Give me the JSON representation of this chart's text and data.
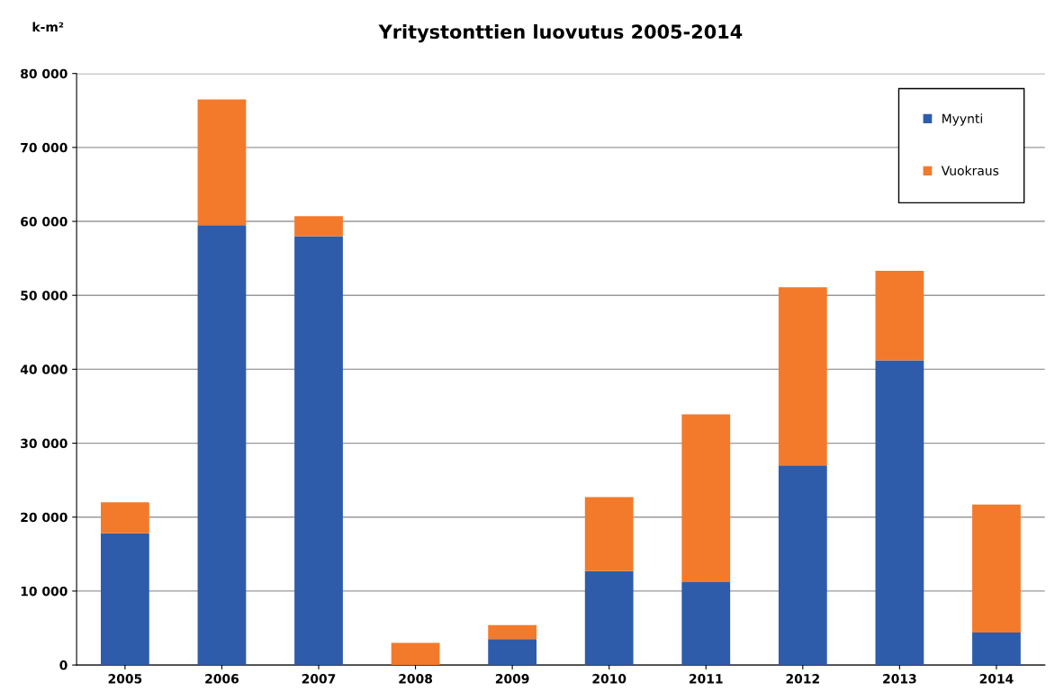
{
  "chart_data": {
    "type": "bar",
    "title": "Yritystonttien luovutus 2005-2014",
    "ylabel": "k-m²",
    "categories": [
      "2005",
      "2006",
      "2007",
      "2008",
      "2009",
      "2010",
      "2011",
      "2012",
      "2013",
      "2014"
    ],
    "stacked": true,
    "series": [
      {
        "name": "Myynti",
        "color": "#2e5caa",
        "values": [
          17800,
          59500,
          58000,
          0,
          3500,
          12700,
          11200,
          27000,
          41200,
          4400
        ]
      },
      {
        "name": "Vuokraus",
        "color": "#f37a2b",
        "values": [
          4200,
          17000,
          2700,
          3000,
          1900,
          10000,
          22700,
          24100,
          12100,
          17300
        ]
      }
    ],
    "ylim": [
      0,
      80000
    ],
    "yticks": [
      {
        "value": 0,
        "label": "0"
      },
      {
        "value": 10000,
        "label": "10 000"
      },
      {
        "value": 20000,
        "label": "20 000"
      },
      {
        "value": 30000,
        "label": "30 000"
      },
      {
        "value": 40000,
        "label": "40 000"
      },
      {
        "value": 50000,
        "label": "50 000"
      },
      {
        "value": 60000,
        "label": "60 000"
      },
      {
        "value": 70000,
        "label": "70 000"
      },
      {
        "value": 80000,
        "label": "80 000"
      }
    ],
    "grid": "y",
    "legend": "top right"
  }
}
